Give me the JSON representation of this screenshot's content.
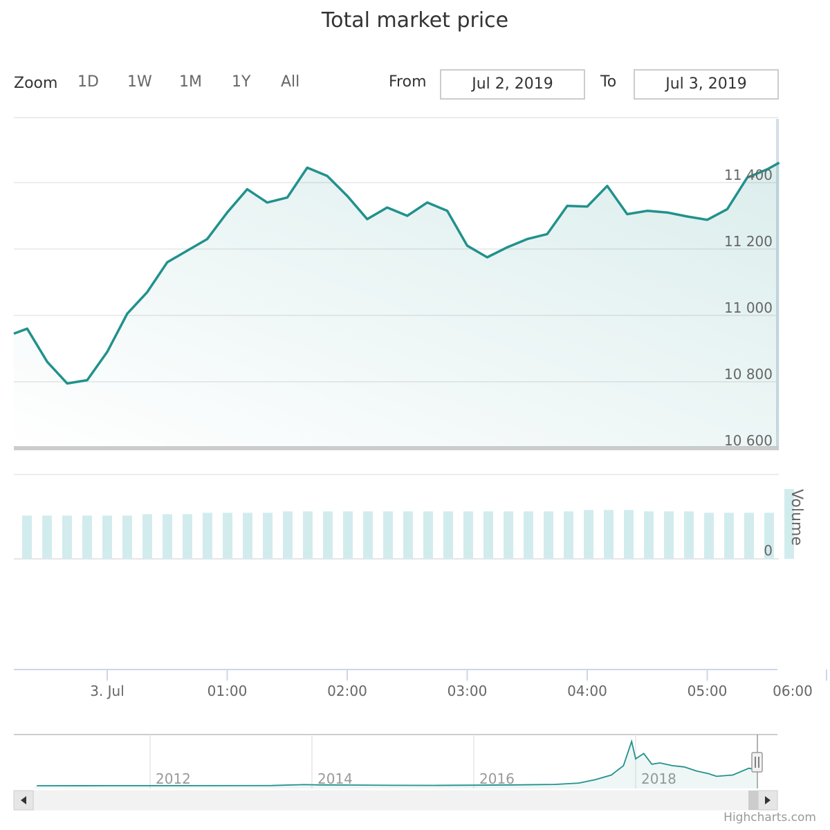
{
  "title": "Total market price",
  "range_selector": {
    "zoom_label": "Zoom",
    "buttons": [
      "1D",
      "1W",
      "1M",
      "1Y",
      "All"
    ],
    "from_label": "From",
    "from_value": "Jul 2, 2019",
    "to_label": "To",
    "to_value": "Jul 3, 2019"
  },
  "credits": "Highcharts.com",
  "colors": {
    "line": "#21918c",
    "volume": "#d2ecee",
    "grid": "#e6e6e6"
  },
  "chart_data": [
    {
      "type": "area",
      "title": "",
      "x_unit": "minutes since 00:00 Jul 3, 2019",
      "x": [
        -47,
        -40,
        -30,
        -20,
        -10,
        0,
        10,
        20,
        30,
        40,
        50,
        60,
        70,
        80,
        90,
        100,
        110,
        120,
        130,
        140,
        150,
        160,
        170,
        180,
        190,
        200,
        210,
        220,
        230,
        240,
        250,
        260,
        270,
        280,
        290,
        300,
        310,
        320,
        330,
        336
      ],
      "y": [
        10945,
        10960,
        10860,
        10795,
        10805,
        10890,
        11005,
        11070,
        11160,
        11195,
        11230,
        11310,
        11380,
        11340,
        11355,
        11445,
        11420,
        11360,
        11290,
        11325,
        11300,
        11340,
        11315,
        11210,
        11175,
        11205,
        11230,
        11245,
        11330,
        11328,
        11390,
        11305,
        11315,
        11310,
        11298,
        11288,
        11320,
        11415,
        11440,
        11460
      ],
      "y_ticks": [
        "10 600",
        "10 800",
        "11 000",
        "11 200",
        "11 400"
      ],
      "ylim": [
        10600,
        11600
      ],
      "x_ticks": [
        "3. Jul",
        "01:00",
        "02:00",
        "03:00",
        "04:00",
        "05:00",
        "06:00"
      ],
      "grid": true
    },
    {
      "type": "bar",
      "ylabel": "Volume",
      "y_ticks": [
        "0"
      ],
      "values": [
        62,
        62,
        62,
        62,
        62,
        62,
        64,
        64,
        64,
        66,
        66,
        66,
        66,
        68,
        68,
        68,
        68,
        68,
        68,
        68,
        68,
        68,
        68,
        68,
        68,
        68,
        68,
        68,
        70,
        70,
        70,
        68,
        68,
        68,
        66,
        66,
        66,
        66,
        100
      ],
      "ylim": [
        0,
        100
      ]
    },
    {
      "type": "area",
      "name": "navigator",
      "x_ticks": [
        "2012",
        "2014",
        "2016",
        "2018"
      ],
      "x": [
        2010.6,
        2011.5,
        2012.5,
        2013.5,
        2013.9,
        2014.1,
        2014.5,
        2015.0,
        2015.5,
        2016.0,
        2016.5,
        2017.0,
        2017.3,
        2017.5,
        2017.7,
        2017.85,
        2017.95,
        2018.0,
        2018.1,
        2018.2,
        2018.3,
        2018.45,
        2018.6,
        2018.75,
        2018.9,
        2019.0,
        2019.2,
        2019.4,
        2019.5
      ],
      "y": [
        0.2,
        0.3,
        0.5,
        1.5,
        8,
        6,
        5,
        3,
        2.5,
        4,
        6,
        10,
        20,
        45,
        80,
        150,
        330,
        200,
        240,
        160,
        170,
        150,
        140,
        110,
        90,
        70,
        80,
        130,
        120
      ],
      "ylim": [
        0,
        350
      ]
    }
  ]
}
